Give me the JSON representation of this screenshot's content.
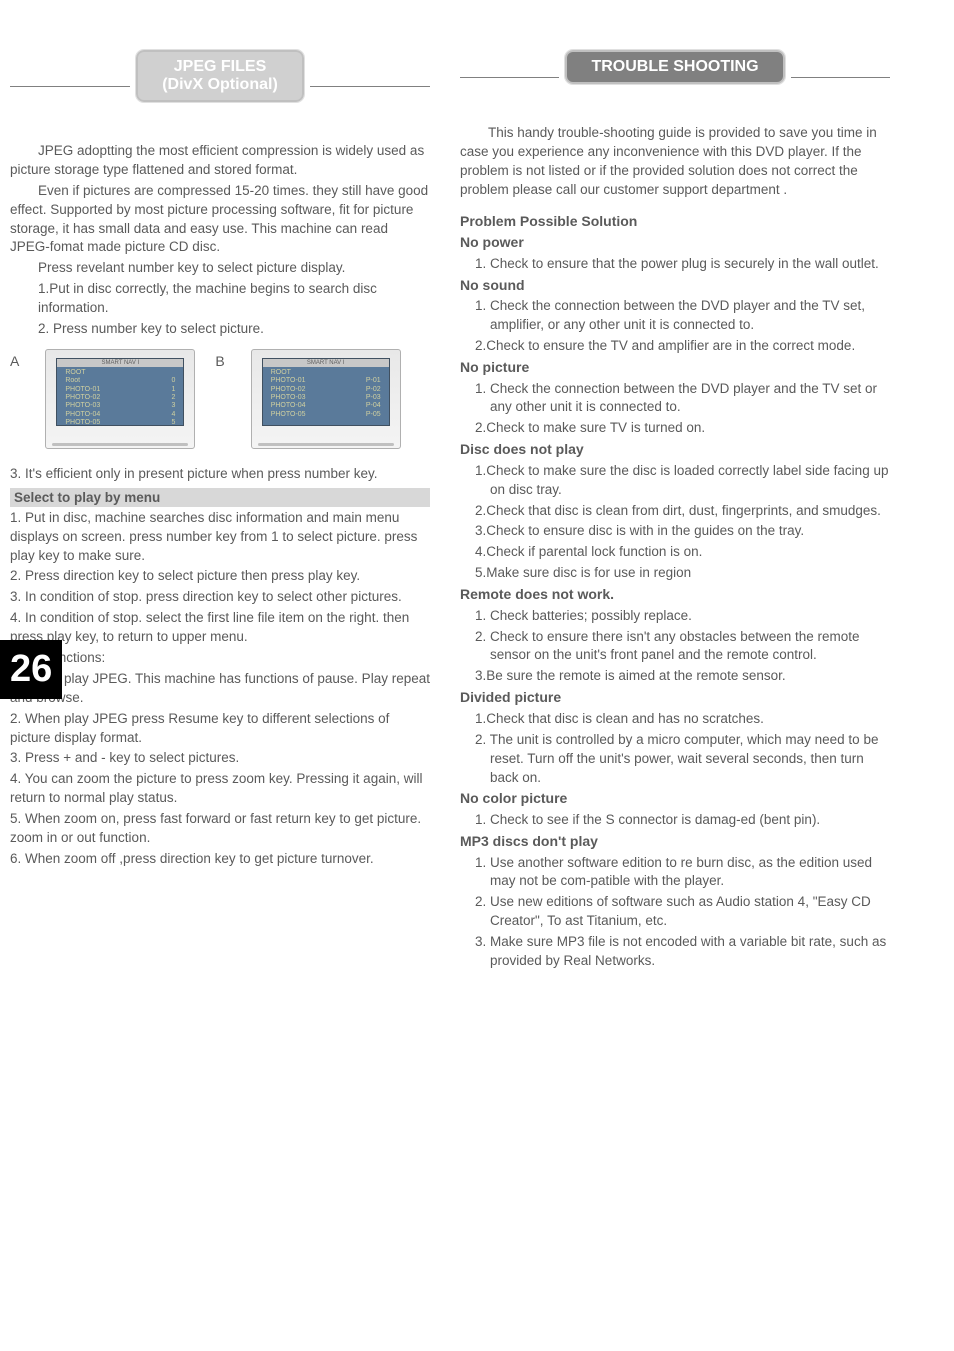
{
  "page_number": "26",
  "left": {
    "header_line1": "JPEG FILES",
    "header_line2": "(DivX Optional)",
    "para1": "JPEG adoptting the most efficient compression is widely used as picture storage type flattened and stored format.",
    "para2": "Even if pictures are compressed 15-20 times. they still have good effect. Supported by most picture processing software, fit for picture storage, it has small data and easy use. This machine can read JPEG-fomat made picture CD disc.",
    "line_press": "Press revelant number key to select picture display.",
    "step1": "1.Put in disc correctly, the machine begins to search disc information.",
    "step2": "2. Press number key to select picture.",
    "shotA_label": "A",
    "shotB_label": "B",
    "shotA": {
      "title": "SMART NAV I",
      "col1": "ROOT",
      "rows": [
        [
          "Root",
          "0"
        ],
        [
          "PHOTO-01",
          "1"
        ],
        [
          "PHOTO-02",
          "2"
        ],
        [
          "PHOTO-03",
          "3"
        ],
        [
          "PHOTO-04",
          "4"
        ],
        [
          "PHOTO-05",
          "5"
        ]
      ]
    },
    "shotB": {
      "title": "SMART NAV I",
      "col1": "ROOT",
      "rows": [
        [
          "PHOTO-01",
          "P-01"
        ],
        [
          "PHOTO-02",
          "P-02"
        ],
        [
          "PHOTO-03",
          "P-03"
        ],
        [
          "PHOTO-04",
          "P-04"
        ],
        [
          "PHOTO-05",
          "P-05"
        ]
      ]
    },
    "step3": "3. It's efficient only in present picture when press number key.",
    "section_title": "Select to play by menu",
    "m1": "1. Put in disc, machine searches disc information and main menu displays on screen. press number key from 1 to select picture. press play key to make sure.",
    "m2": "2. Press direction key to select picture then press play key.",
    "m3": "3. In condition of stop. press direction key to select other pictures.",
    "m4": "4. In condition of stop. select the first line file item on the right. then press play key, to return to upper menu.",
    "other_title": "Other functions:",
    "o1": "1. When play JPEG. This machine has functions of pause. Play repeat and browse.",
    "o2": "2. When play JPEG press Resume key to different selections of picture display format.",
    "o3": "3. Press + and -  key to select pictures.",
    "o4": "4. You can zoom the picture to press zoom key. Pressing it again, will return to normal play status.",
    "o5": "5. When zoom on, press fast forward or fast return key to get picture. zoom in or out  function.",
    "o6": "6. When zoom off ,press direction key to get picture turnover."
  },
  "right": {
    "header": "TROUBLE SHOOTING",
    "intro": "This  handy  trouble-shooting  guide  is provided to save you time in case you experience any inconvenience with this DVD player.   If the problem is not listed or if the  provided  solution does not correct the problem please call our customer support department .",
    "problem_header": "Problem    Possible Solution",
    "sections": [
      {
        "title": "No power",
        "items": [
          "1. Check to ensure that the power plug is securely in the wall outlet."
        ]
      },
      {
        "title": "No sound",
        "items": [
          "1. Check the connection between  the  DVD player and the TV set,  amplifier,   or  any other unit it is connected to.",
          "2.Check to  ensure the  TV and amplifier are in the correct mode."
        ]
      },
      {
        "title": "No picture",
        "items": [
          "1. Check the connection between  the  DVD player and the TV set or any other  unit  it is connected to.",
          "2.Check to make sure TV is turned on."
        ]
      },
      {
        "title": "Disc does not play",
        "items": [
          "1.Check to make sure the disc is loaded correctly label side facing up on  disc tray.",
          "2.Check that disc is clean from dirt, dust, fingerprints, and smudges.",
          "3.Check  to ensure disc is with in the guides on the tray.",
          "4.Check if parental lock function is on.",
          "5.Make sure disc is for use in region"
        ]
      },
      {
        "title": "Remote does not work.",
        "items": [
          "1. Check batteries;  possibly replace.",
          "2. Check to ensure there isn't any obstacles between   the remote sensor on the unit's front panel and the remote  control.",
          "3.Be sure the remote is aimed at the remote sensor."
        ]
      },
      {
        "title": "Divided picture",
        "items": [
          "1.Check  that  disc  is  clean  and has no scratches.",
          "2. The unit is controlled by a micro computer, which may need to be reset.  Turn off  the unit's power, wait several  seconds,  then turn back on."
        ]
      },
      {
        "title": "No color picture",
        "items": [
          "1. Check to see if the S connector is damag-ed (bent pin)."
        ]
      },
      {
        "title": "MP3 discs don't play",
        "items": [
          "1. Use another software  edition  to   re burn disc, as the edition used may not be com-patible  with the player.",
          "2. Use new editions of software such as Audio station 4,  \"Easy  CD  Creator\",  To ast Titanium, etc.",
          "3. Make sure MP3 file is not encoded  with a variable bit rate, such as provided by Real Networks."
        ]
      }
    ]
  }
}
